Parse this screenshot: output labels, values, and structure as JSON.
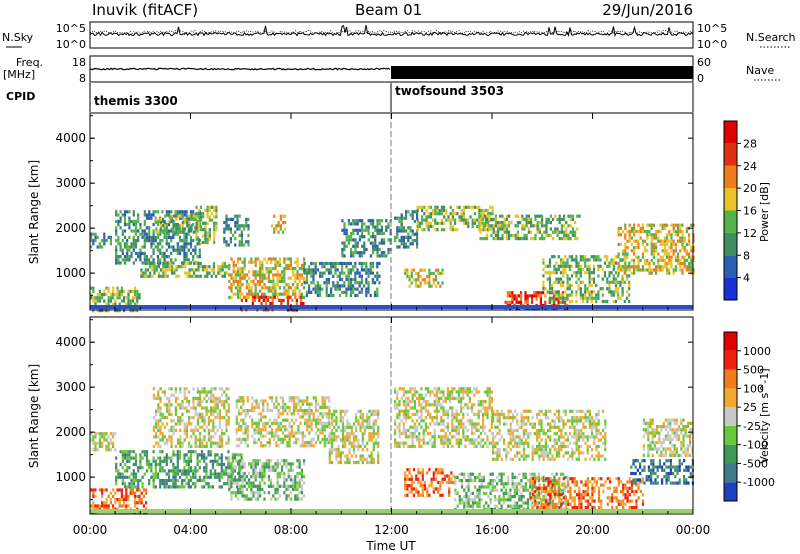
{
  "header": {
    "station": "Inuvik (fitACF)",
    "beam": "Beam 01",
    "date": "29/Jun/2016"
  },
  "strips": {
    "nsky_label": "N.Sky",
    "nsky_ticks": [
      "10^5",
      "10^0"
    ],
    "nsearch_label": "N.Search",
    "freq_label": "Freq.",
    "freq_unit": "[MHz]",
    "freq_ticks": [
      "18",
      "8"
    ],
    "nave_label": "Nave",
    "nave_ticks": [
      "60",
      "0"
    ],
    "cpid_label": "CPID",
    "cpid_segments": [
      {
        "label": "themis 3300",
        "start_hour": 0
      },
      {
        "label": "twofsound 3503",
        "start_hour": 12
      }
    ]
  },
  "x_axis": {
    "title": "Time UT",
    "ticks": [
      "00:00",
      "04:00",
      "08:00",
      "12:00",
      "16:00",
      "20:00",
      "00:00"
    ]
  },
  "chart_data": [
    {
      "type": "heatmap",
      "panel": "power",
      "ylabel": "Slant Range [km]",
      "ylim": [
        180,
        4560
      ],
      "y_ticks": [
        "1000",
        "2000",
        "3000",
        "4000"
      ],
      "colorbar_label": "Power [dB]",
      "colorbar_ticks": [
        "4",
        "8",
        "12",
        "16",
        "20",
        "24",
        "28"
      ],
      "colorbar_colors": [
        "#1a2fd6",
        "#2c5fb0",
        "#3f8e62",
        "#55b24a",
        "#e8c42a",
        "#f07c1c",
        "#e03014",
        "#e00000"
      ],
      "echo_bands": [
        {
          "t0": 0.0,
          "t1": 0.8,
          "r0": 1550,
          "r1": 1900,
          "level": 2
        },
        {
          "t0": 1.0,
          "t1": 4.4,
          "r0": 1200,
          "r1": 2400,
          "level": 2
        },
        {
          "t0": 2.6,
          "t1": 4.2,
          "r0": 1900,
          "r1": 2300,
          "level": 3
        },
        {
          "t0": 4.2,
          "t1": 5.0,
          "r0": 1700,
          "r1": 2500,
          "level": 3
        },
        {
          "t0": 5.3,
          "t1": 6.3,
          "r0": 1600,
          "r1": 2300,
          "level": 2
        },
        {
          "t0": 7.2,
          "t1": 7.8,
          "r0": 1900,
          "r1": 2300,
          "level": 4
        },
        {
          "t0": 0.0,
          "t1": 2.0,
          "r0": 200,
          "r1": 700,
          "level": 3
        },
        {
          "t0": 2.0,
          "t1": 5.5,
          "r0": 900,
          "r1": 1250,
          "level": 3
        },
        {
          "t0": 5.5,
          "t1": 8.5,
          "r0": 450,
          "r1": 1350,
          "level": 4
        },
        {
          "t0": 6.0,
          "t1": 8.5,
          "r0": 200,
          "r1": 500,
          "level": 6
        },
        {
          "t0": 8.5,
          "t1": 11.5,
          "r0": 500,
          "r1": 1250,
          "level": 2
        },
        {
          "t0": 10.0,
          "t1": 12.0,
          "r0": 1400,
          "r1": 2200,
          "level": 2
        },
        {
          "t0": 12.1,
          "t1": 13.0,
          "r0": 1600,
          "r1": 2400,
          "level": 2
        },
        {
          "t0": 13.0,
          "t1": 16.0,
          "r0": 2000,
          "r1": 2500,
          "level": 3
        },
        {
          "t0": 12.5,
          "t1": 14.0,
          "r0": 700,
          "r1": 1100,
          "level": 4
        },
        {
          "t0": 15.5,
          "t1": 19.5,
          "r0": 1800,
          "r1": 2300,
          "level": 3
        },
        {
          "t0": 16.5,
          "t1": 19.0,
          "r0": 200,
          "r1": 600,
          "level": 6
        },
        {
          "t0": 18.0,
          "t1": 21.5,
          "r0": 400,
          "r1": 1400,
          "level": 3
        },
        {
          "t0": 21.0,
          "t1": 24.0,
          "r0": 1000,
          "r1": 2100,
          "level": 4
        }
      ]
    },
    {
      "type": "heatmap",
      "panel": "velocity",
      "ylabel": "Slant Range [km]",
      "ylim": [
        180,
        4560
      ],
      "y_ticks": [
        "1000",
        "2000",
        "3000",
        "4000"
      ],
      "colorbar_label": "Velocity [m s^-1]",
      "colorbar_ticks": [
        "1000",
        "500",
        "100",
        "25",
        "-25",
        "-100",
        "-500",
        "-1000"
      ],
      "colorbar_colors": [
        "#1f3fbf",
        "#3f7a8a",
        "#3f9a5a",
        "#69c83a",
        "#c8c8c8",
        "#f0a830",
        "#f07c1c",
        "#f02010",
        "#e00000"
      ],
      "echo_bands": [
        {
          "t0": 0.0,
          "t1": 2.2,
          "r0": 250,
          "r1": 750,
          "level": 6
        },
        {
          "t0": 0.0,
          "t1": 1.0,
          "r0": 1600,
          "r1": 2000,
          "level": 4
        },
        {
          "t0": 2.5,
          "t1": 5.5,
          "r0": 1700,
          "r1": 3000,
          "level": 4
        },
        {
          "t0": 1.0,
          "t1": 6.0,
          "r0": 800,
          "r1": 1600,
          "level": 2
        },
        {
          "t0": 5.5,
          "t1": 8.5,
          "r0": 500,
          "r1": 1400,
          "level": 3
        },
        {
          "t0": 5.8,
          "t1": 9.5,
          "r0": 1700,
          "r1": 2800,
          "level": 4
        },
        {
          "t0": 9.5,
          "t1": 11.5,
          "r0": 1300,
          "r1": 2500,
          "level": 4
        },
        {
          "t0": 12.1,
          "t1": 16.0,
          "r0": 1700,
          "r1": 3000,
          "level": 4
        },
        {
          "t0": 12.5,
          "t1": 14.5,
          "r0": 600,
          "r1": 1200,
          "level": 6
        },
        {
          "t0": 14.5,
          "t1": 19.0,
          "r0": 300,
          "r1": 1100,
          "level": 3
        },
        {
          "t0": 16.0,
          "t1": 20.5,
          "r0": 1400,
          "r1": 2500,
          "level": 4
        },
        {
          "t0": 17.5,
          "t1": 22.0,
          "r0": 300,
          "r1": 1000,
          "level": 6
        },
        {
          "t0": 21.5,
          "t1": 24.0,
          "r0": 900,
          "r1": 1400,
          "level": 1
        },
        {
          "t0": 22.0,
          "t1": 24.0,
          "r0": 1500,
          "r1": 2300,
          "level": 4
        }
      ]
    }
  ]
}
